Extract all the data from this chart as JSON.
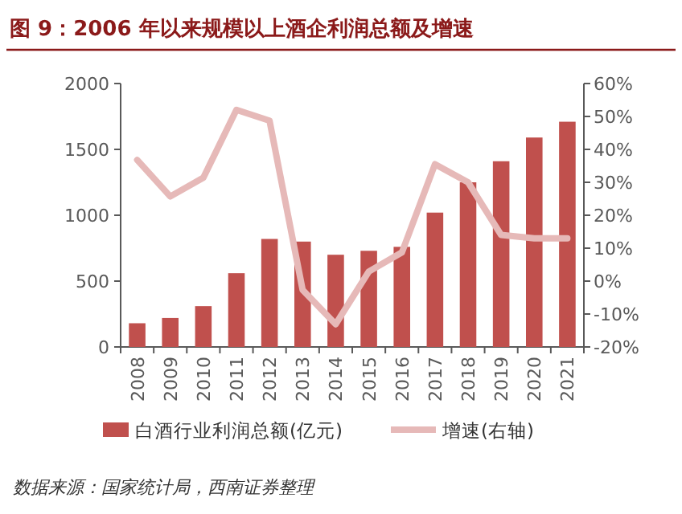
{
  "chart_data": {
    "type": "bar",
    "title": "图 9：2006 年以来规模以上酒企利润总额及增速",
    "categories": [
      "2008",
      "2009",
      "2010",
      "2011",
      "2012",
      "2013",
      "2014",
      "2015",
      "2016",
      "2017",
      "2018",
      "2019",
      "2020",
      "2021"
    ],
    "series": [
      {
        "name": "白酒行业利润总额(亿元)",
        "color": "#c0504d",
        "values": [
          180,
          220,
          310,
          560,
          820,
          800,
          700,
          730,
          760,
          1020,
          1250,
          1410,
          1590,
          1710
        ]
      },
      {
        "name": "增速(右轴)",
        "type": "line",
        "axis": "y2",
        "color": "#e6b9b8",
        "values": [
          36.8,
          25.7,
          31.4,
          52,
          48.7,
          -2.7,
          -13.1,
          2.9,
          8.7,
          35.5,
          30,
          14,
          13,
          13
        ]
      }
    ],
    "ylim": [
      0,
      2000
    ],
    "yticks": [
      0,
      500,
      1000,
      1500,
      2000
    ],
    "y2lim": [
      -20,
      60
    ],
    "y2ticks": [
      {
        "value": -20,
        "label": "-20%"
      },
      {
        "value": -10,
        "label": "-10%"
      },
      {
        "value": 0,
        "label": "0%"
      },
      {
        "value": 10,
        "label": "10%"
      },
      {
        "value": 20,
        "label": "20%"
      },
      {
        "value": 30,
        "label": "30%"
      },
      {
        "value": 40,
        "label": "40%"
      },
      {
        "value": 50,
        "label": "50%"
      },
      {
        "value": 60,
        "label": "60%"
      }
    ],
    "legend": "bottom",
    "annotations": [
      "数据来源：国家统计局，西南证券整理"
    ]
  }
}
